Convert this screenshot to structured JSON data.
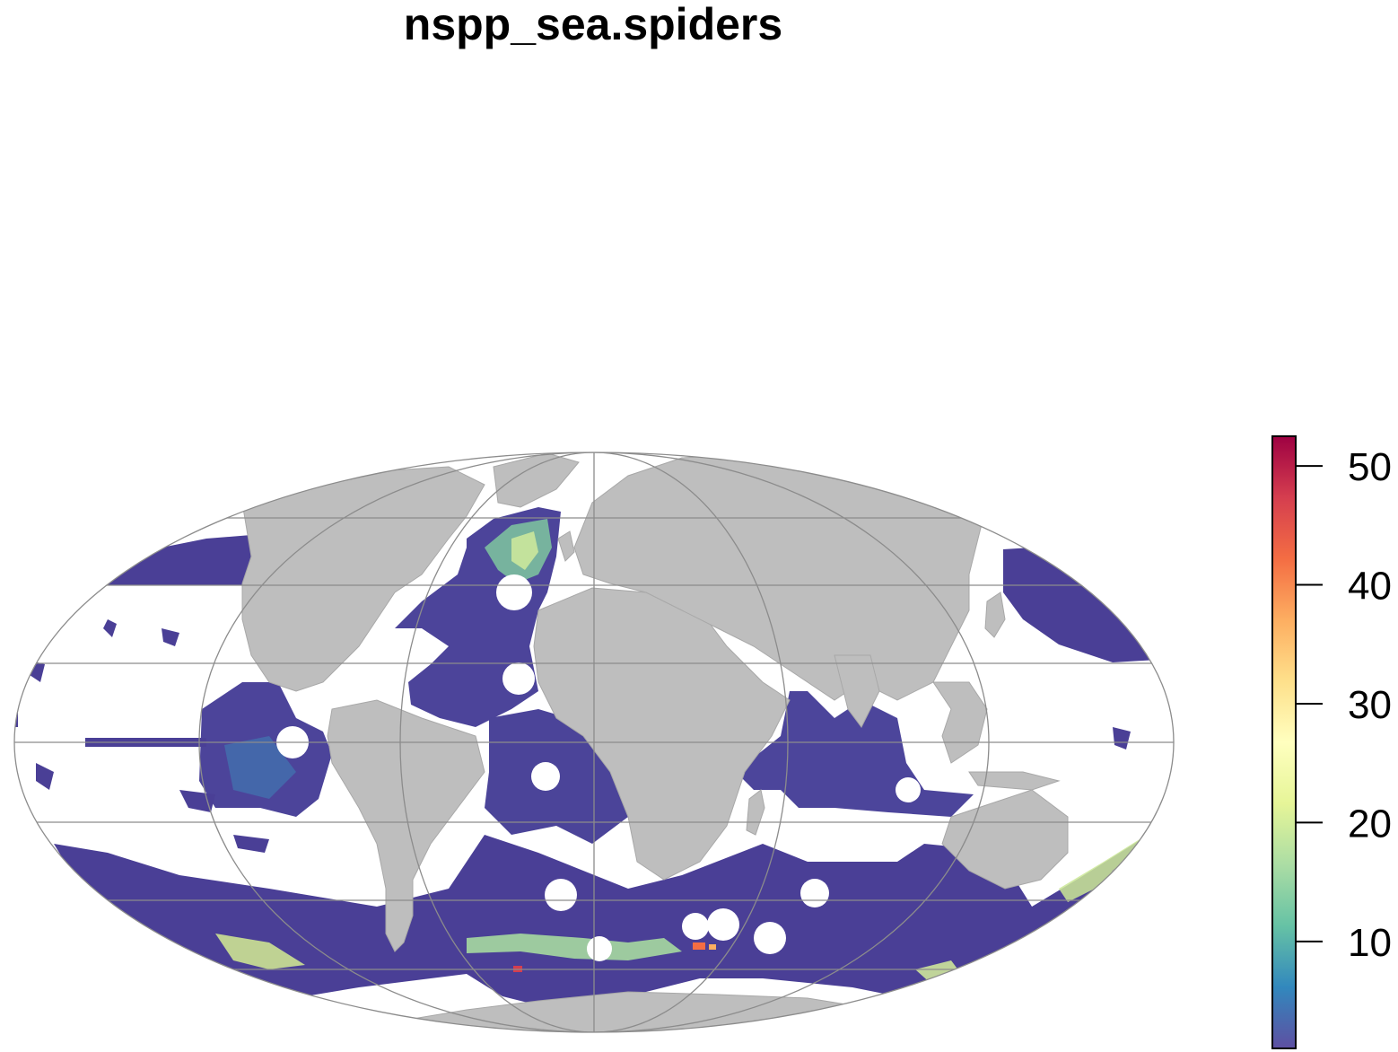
{
  "title": "nspp_sea.spiders",
  "map": {
    "projection": "mollweide",
    "land_color": "#bebebe",
    "graticule_color": "#8c8c8c",
    "background_color": "#ffffff"
  },
  "legend": {
    "ticks": [
      "10",
      "20",
      "30",
      "40",
      "50"
    ],
    "range": [
      1,
      52.5
    ],
    "palette": [
      "#5e4fa2",
      "#3288bd",
      "#66c2a5",
      "#abdda4",
      "#e6f598",
      "#ffffbf",
      "#fee08b",
      "#fdae61",
      "#f46d43",
      "#d53e4f",
      "#9e0142"
    ]
  }
}
